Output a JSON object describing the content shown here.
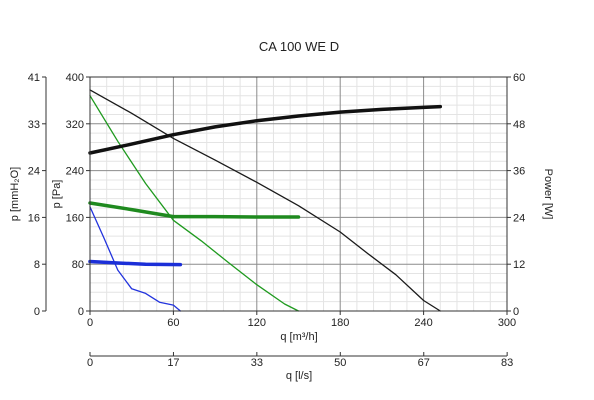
{
  "chart_data": {
    "type": "line",
    "title": "CA 100 WE D",
    "x_axis": {
      "label": "q [m³/h]",
      "range": [
        0,
        300
      ],
      "ticks": [
        "0",
        "60",
        "120",
        "180",
        "240",
        "300"
      ]
    },
    "x2_axis": {
      "label": "q [l/s]",
      "range": [
        0,
        83.3
      ],
      "tick_values": [
        0,
        16.67,
        33.33,
        50,
        66.67,
        83.33
      ],
      "ticks": [
        "0",
        "17",
        "33",
        "50",
        "67",
        "83"
      ]
    },
    "y_axis_pa": {
      "label": "p [Pa]",
      "range": [
        0,
        400
      ],
      "ticks": [
        "0",
        "80",
        "160",
        "240",
        "320",
        "400"
      ]
    },
    "y_axis_mmh2o": {
      "label": "p [mmH₂O]",
      "ticks": [
        "0",
        "8",
        "16",
        "24",
        "33",
        "41"
      ]
    },
    "y_axis_power": {
      "label": "Power [W]",
      "range": [
        0,
        60
      ],
      "ticks": [
        "0",
        "12",
        "24",
        "36",
        "48",
        "60"
      ]
    },
    "grid": true,
    "series": [
      {
        "axis": "pressure",
        "color": "#1a1a1a",
        "width": 1.3,
        "x": [
          0,
          30,
          60,
          90,
          120,
          150,
          180,
          200,
          220,
          240,
          252
        ],
        "y": [
          378,
          338,
          295,
          258,
          220,
          180,
          135,
          98,
          62,
          18,
          0
        ]
      },
      {
        "axis": "pressure",
        "color": "#1f9a1f",
        "width": 1.3,
        "x": [
          0,
          20,
          40,
          60,
          80,
          100,
          120,
          140,
          150
        ],
        "y": [
          368,
          290,
          218,
          155,
          120,
          82,
          45,
          12,
          0
        ]
      },
      {
        "axis": "pressure",
        "color": "#2233dd",
        "width": 1.3,
        "x": [
          0,
          10,
          20,
          30,
          40,
          50,
          60,
          65
        ],
        "y": [
          178,
          125,
          70,
          38,
          30,
          15,
          10,
          0
        ]
      },
      {
        "axis": "power",
        "color": "#111111",
        "width": 3.5,
        "x": [
          0,
          30,
          60,
          90,
          120,
          150,
          180,
          210,
          240,
          252
        ],
        "y": [
          40.5,
          42.8,
          45.2,
          47.2,
          48.8,
          50,
          51,
          51.7,
          52.2,
          52.4
        ]
      },
      {
        "axis": "power",
        "color": "#1f8a1f",
        "width": 3.5,
        "x": [
          0,
          30,
          60,
          90,
          120,
          150
        ],
        "y": [
          27.7,
          26,
          24.2,
          24.2,
          24.1,
          24.1
        ]
      },
      {
        "axis": "power",
        "color": "#1b2fd8",
        "width": 3.5,
        "x": [
          0,
          20,
          40,
          65
        ],
        "y": [
          12.7,
          12.3,
          12.0,
          11.9
        ]
      }
    ]
  }
}
